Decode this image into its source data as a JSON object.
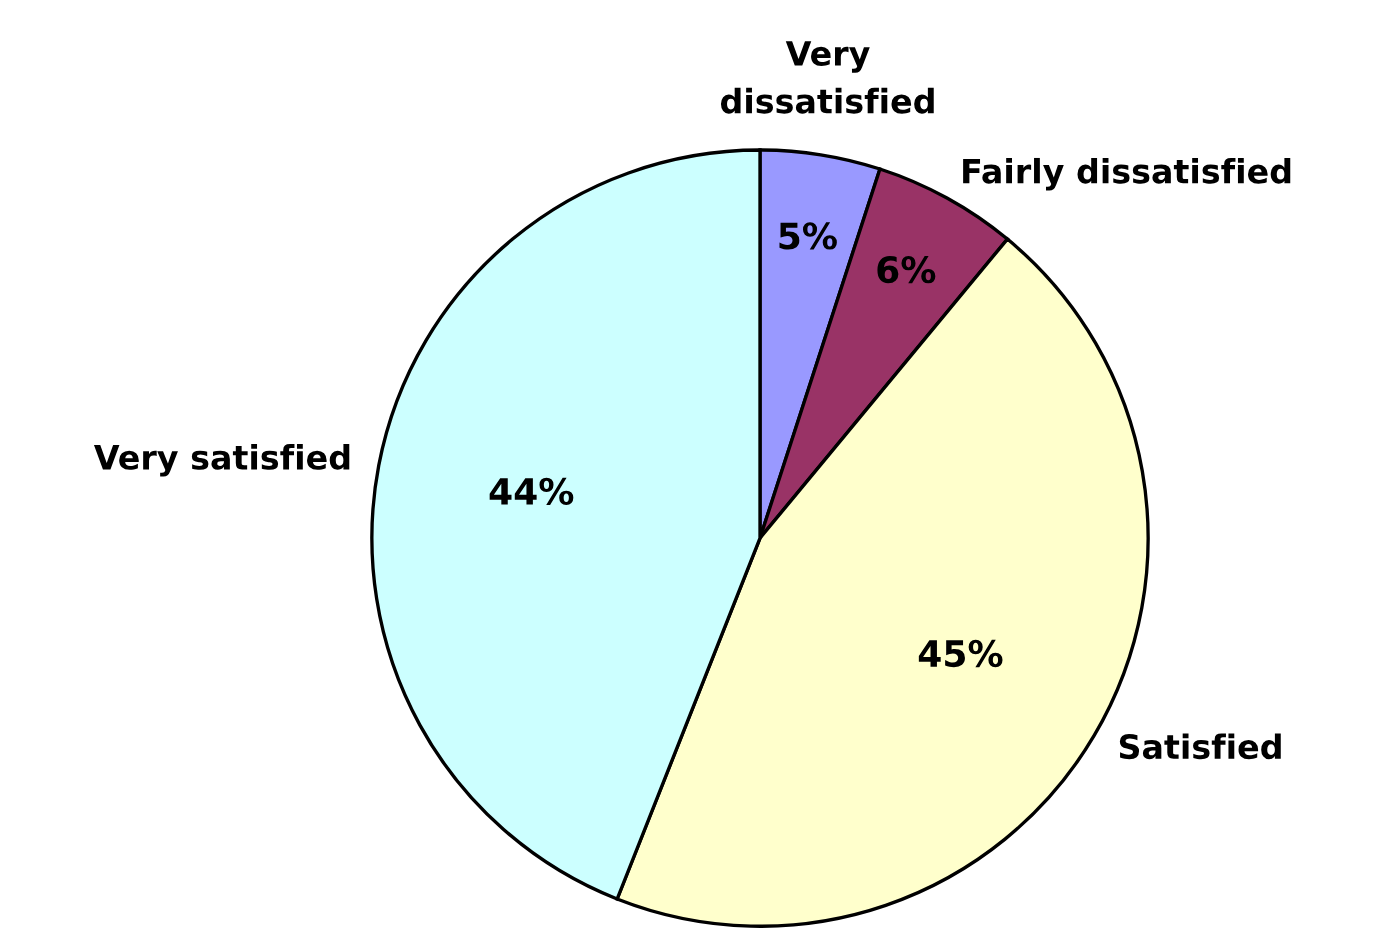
{
  "chart_data": {
    "type": "pie",
    "categories": [
      "Very\ndissatisfied",
      "Fairly dissatisfied",
      "Satisfied",
      "Very satisfied"
    ],
    "values": [
      5,
      6,
      45,
      44
    ],
    "colors": [
      "#9999ff",
      "#993366",
      "#ffffcc",
      "#ccffff"
    ],
    "value_labels": [
      "5%",
      "6%",
      "45%",
      "44%"
    ]
  }
}
